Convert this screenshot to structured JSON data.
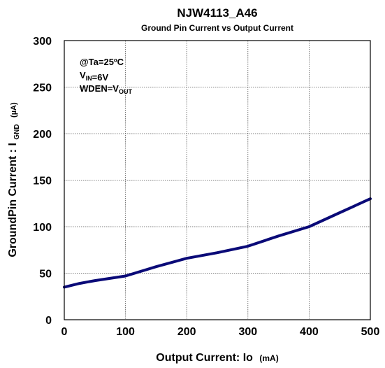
{
  "chart_data": {
    "type": "line",
    "title": "NJW4113_A46",
    "subtitle": "Ground Pin Current vs Output Current",
    "xlabel": {
      "main": "Output Current: Io",
      "unit": "(mA)"
    },
    "ylabel": {
      "main": "GroundPin Current : I",
      "sub": "GND",
      "unit": "(µA)"
    },
    "xlim": [
      0,
      500
    ],
    "ylim": [
      0,
      300
    ],
    "x_ticks": [
      "0",
      "100",
      "200",
      "300",
      "400",
      "500"
    ],
    "y_ticks": [
      "0",
      "50",
      "100",
      "150",
      "200",
      "250",
      "300"
    ],
    "grid": true,
    "annotations": [
      {
        "parts": [
          {
            "text": "@Ta=25ºC"
          }
        ]
      },
      {
        "parts": [
          {
            "text": "V"
          },
          {
            "text": "IN",
            "sub": true
          },
          {
            "text": "=6V"
          }
        ]
      },
      {
        "parts": [
          {
            "text": "WDEN=V"
          },
          {
            "text": "OUT",
            "sub": true
          }
        ]
      }
    ],
    "series": [
      {
        "color": "#0a0a78",
        "x": [
          0,
          25,
          50,
          100,
          150,
          200,
          250,
          300,
          350,
          400,
          450,
          500
        ],
        "y": [
          35,
          39,
          42,
          47,
          57,
          66,
          72,
          79,
          90,
          100,
          115,
          130
        ]
      }
    ]
  }
}
